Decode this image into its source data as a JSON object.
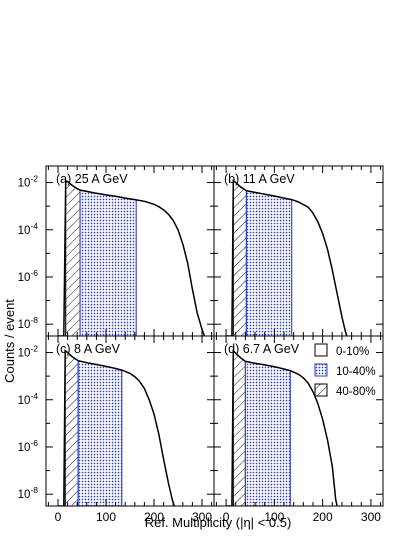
{
  "figure": {
    "ylabel": "Counts / event",
    "xlabel": "Ref. Multiplicity (|η| < 0.5)",
    "legend": [
      {
        "label": "0-10%",
        "pattern": "none"
      },
      {
        "label": "10-40%",
        "pattern": "blue-dots"
      },
      {
        "label": "40-80%",
        "pattern": "hatch"
      }
    ],
    "colors": {
      "curve": "#000000",
      "band_blue": "#2b3fd1",
      "hatch": "#000000"
    }
  },
  "chart_data": [
    {
      "type": "area",
      "panel_label": "(a) 25 A GeV",
      "xlim": [
        -25,
        325
      ],
      "ylim_log10": [
        -8.5,
        -1.3
      ],
      "yscale": "log",
      "x_ticks": [
        "0",
        "100",
        "200",
        "300"
      ],
      "y_ticks": [
        "10^-2",
        "10^-4",
        "10^-6",
        "10^-8"
      ],
      "x": [
        0,
        12,
        16,
        20,
        30,
        40,
        46,
        60,
        80,
        100,
        120,
        140,
        160,
        180,
        200,
        210,
        220,
        230,
        240,
        250,
        260,
        270,
        280,
        290,
        300,
        305
      ],
      "y": [
        1e-09,
        1e-09,
        0.012,
        0.011,
        0.0075,
        0.0055,
        0.0048,
        0.0042,
        0.0035,
        0.003,
        0.0026,
        0.0022,
        0.0019,
        0.0016,
        0.0012,
        0.00095,
        0.0007,
        0.00045,
        0.00025,
        0.0001,
        2.5e-05,
        4e-06,
        3e-07,
        3e-08,
        6e-09,
        1e-09
      ],
      "bands": [
        {
          "name": "40-80%",
          "x_range": [
            16,
            46
          ]
        },
        {
          "name": "10-40%",
          "x_range": [
            46,
            163
          ]
        }
      ]
    },
    {
      "type": "area",
      "panel_label": "(b) 11 A GeV",
      "xlim": [
        -25,
        325
      ],
      "ylim_log10": [
        -8.5,
        -1.3
      ],
      "yscale": "log",
      "x_ticks": [
        "0",
        "100",
        "200",
        "300"
      ],
      "y_ticks": [
        "10^-2",
        "10^-4",
        "10^-6",
        "10^-8"
      ],
      "x": [
        0,
        12,
        15,
        20,
        30,
        42,
        60,
        80,
        100,
        120,
        136,
        150,
        170,
        180,
        190,
        200,
        210,
        220,
        230,
        240,
        246,
        250
      ],
      "y": [
        1e-09,
        1e-09,
        0.012,
        0.01,
        0.0065,
        0.0045,
        0.0038,
        0.0032,
        0.0027,
        0.0022,
        0.0019,
        0.0015,
        0.0009,
        0.0005,
        0.00022,
        7e-05,
        1.5e-05,
        2e-06,
        2e-07,
        2e-08,
        6e-09,
        1e-09
      ],
      "bands": [
        {
          "name": "40-80%",
          "x_range": [
            15,
            42
          ]
        },
        {
          "name": "10-40%",
          "x_range": [
            42,
            136
          ]
        }
      ]
    },
    {
      "type": "area",
      "panel_label": "(c) 8 A GeV",
      "xlim": [
        -25,
        325
      ],
      "ylim_log10": [
        -8.5,
        -1.3
      ],
      "yscale": "log",
      "x_ticks": [
        "0",
        "100",
        "200",
        "300"
      ],
      "y_ticks": [
        "10^-2",
        "10^-4",
        "10^-6",
        "10^-8"
      ],
      "x": [
        0,
        12,
        15,
        20,
        30,
        42,
        60,
        80,
        100,
        120,
        133,
        150,
        160,
        170,
        180,
        190,
        200,
        210,
        220,
        230,
        238,
        242
      ],
      "y": [
        1e-09,
        1e-09,
        0.012,
        0.01,
        0.0065,
        0.0045,
        0.0037,
        0.0031,
        0.0026,
        0.0021,
        0.0018,
        0.0013,
        0.00095,
        0.0006,
        0.0003,
        0.0001,
        2.5e-05,
        3.5e-06,
        3e-07,
        3e-08,
        6e-09,
        1e-09
      ],
      "bands": [
        {
          "name": "40-80%",
          "x_range": [
            15,
            42
          ]
        },
        {
          "name": "10-40%",
          "x_range": [
            42,
            133
          ]
        }
      ]
    },
    {
      "type": "area",
      "panel_label": "(d) 6.7 A GeV",
      "xlim": [
        -25,
        325
      ],
      "ylim_log10": [
        -8.5,
        -1.3
      ],
      "yscale": "log",
      "x_ticks": [
        "0",
        "100",
        "200",
        "300"
      ],
      "y_ticks": [
        "10^-2",
        "10^-4",
        "10^-6",
        "10^-8"
      ],
      "x": [
        0,
        12,
        15,
        20,
        30,
        40,
        60,
        80,
        100,
        120,
        133,
        150,
        160,
        170,
        180,
        190,
        200,
        210,
        220,
        227,
        230
      ],
      "y": [
        1e-09,
        1e-09,
        0.012,
        0.0095,
        0.006,
        0.0042,
        0.0035,
        0.003,
        0.0025,
        0.002,
        0.0017,
        0.0012,
        0.00085,
        0.0005,
        0.00022,
        7e-05,
        1.5e-05,
        2e-06,
        1.5e-07,
        6e-09,
        1e-09
      ],
      "bands": [
        {
          "name": "40-80%",
          "x_range": [
            15,
            40
          ]
        },
        {
          "name": "10-40%",
          "x_range": [
            40,
            133
          ]
        }
      ]
    }
  ]
}
